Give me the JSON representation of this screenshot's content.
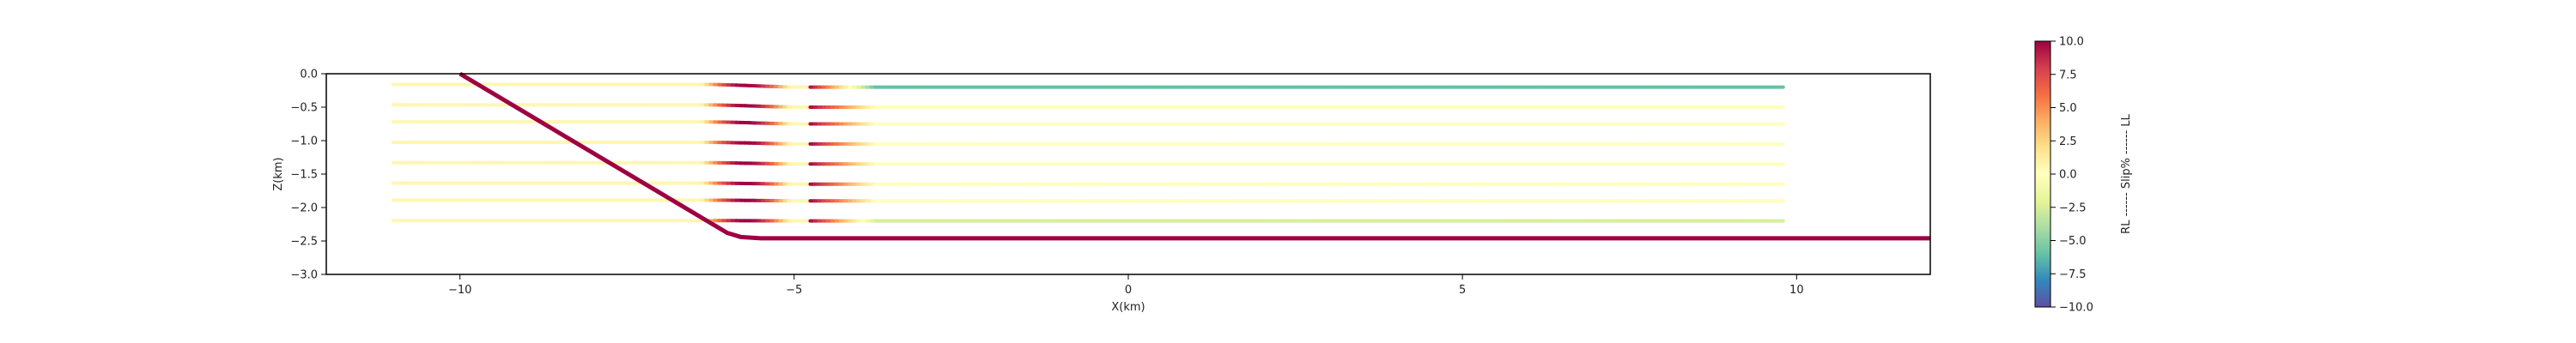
{
  "chart_data": {
    "type": "line",
    "xlabel": "X(km)",
    "ylabel": "Z(km)",
    "xlim": [
      -12,
      12
    ],
    "ylim": [
      -3.0,
      0.0
    ],
    "xticks": [
      -10,
      -5,
      0,
      5,
      10
    ],
    "xtick_labels": [
      "−10",
      "−5",
      "0",
      "5",
      "10"
    ],
    "yticks": [
      0.0,
      -0.5,
      -1.0,
      -1.5,
      -2.0,
      -2.5,
      -3.0
    ],
    "ytick_labels": [
      "0.0",
      "−0.5",
      "−1.0",
      "−1.5",
      "−2.0",
      "−2.5",
      "−3.0"
    ],
    "colorbar": {
      "label": "RL ------ Slip% ------ LL",
      "range": [
        -10.0,
        10.0
      ],
      "ticks": [
        10.0,
        7.5,
        5.0,
        2.5,
        0.0,
        -2.5,
        -5.0,
        -7.5,
        -10.0
      ],
      "tick_labels": [
        "10.0",
        "7.5",
        "5.0",
        "2.5",
        "0.0",
        "−2.5",
        "−5.0",
        "−7.5",
        "−10.0"
      ],
      "colors": [
        "#5e4fa2",
        "#3288bd",
        "#66c2a5",
        "#abdda4",
        "#e6f598",
        "#ffffbf",
        "#fee08b",
        "#fdae61",
        "#f46d43",
        "#d53e4f",
        "#9e0142"
      ]
    },
    "main_fault": {
      "points": [
        [
          -10.0,
          0.0
        ],
        [
          -6.0,
          -2.38
        ],
        [
          -5.8,
          -2.44
        ],
        [
          -5.5,
          -2.46
        ],
        [
          12.0,
          -2.46
        ]
      ],
      "slip_percent": 10.0
    },
    "layers": [
      {
        "depth": -0.2,
        "x_start": -11.0,
        "x_end": 9.8,
        "bend_start": -6.4,
        "bend_end": -4.8,
        "bend_slip": 10.0,
        "flat_slip": -6.0,
        "left_slip": 0.5
      },
      {
        "depth": -0.5,
        "x_start": -11.0,
        "x_end": 9.8,
        "bend_start": -6.4,
        "bend_end": -4.8,
        "bend_slip": 10.0,
        "flat_slip": 0.0,
        "left_slip": 0.5
      },
      {
        "depth": -0.75,
        "x_start": -11.0,
        "x_end": 9.8,
        "bend_start": -6.4,
        "bend_end": -4.8,
        "bend_slip": 10.0,
        "flat_slip": 0.0,
        "left_slip": 0.5
      },
      {
        "depth": -1.05,
        "x_start": -11.0,
        "x_end": 9.8,
        "bend_start": -6.4,
        "bend_end": -4.8,
        "bend_slip": 10.0,
        "flat_slip": 0.0,
        "left_slip": 0.5
      },
      {
        "depth": -1.35,
        "x_start": -11.0,
        "x_end": 9.8,
        "bend_start": -6.4,
        "bend_end": -4.8,
        "bend_slip": 10.0,
        "flat_slip": 0.0,
        "left_slip": 0.5
      },
      {
        "depth": -1.65,
        "x_start": -11.0,
        "x_end": 9.8,
        "bend_start": -6.4,
        "bend_end": -4.8,
        "bend_slip": 10.0,
        "flat_slip": 0.0,
        "left_slip": 0.5
      },
      {
        "depth": -1.9,
        "x_start": -11.0,
        "x_end": 9.8,
        "bend_start": -6.4,
        "bend_end": -4.8,
        "bend_slip": 10.0,
        "flat_slip": 0.0,
        "left_slip": 0.5
      },
      {
        "depth": -2.2,
        "x_start": -11.0,
        "x_end": 9.8,
        "bend_start": -6.4,
        "bend_end": -4.8,
        "bend_slip": 10.0,
        "flat_slip": -2.5,
        "left_slip": 0.5
      }
    ]
  }
}
